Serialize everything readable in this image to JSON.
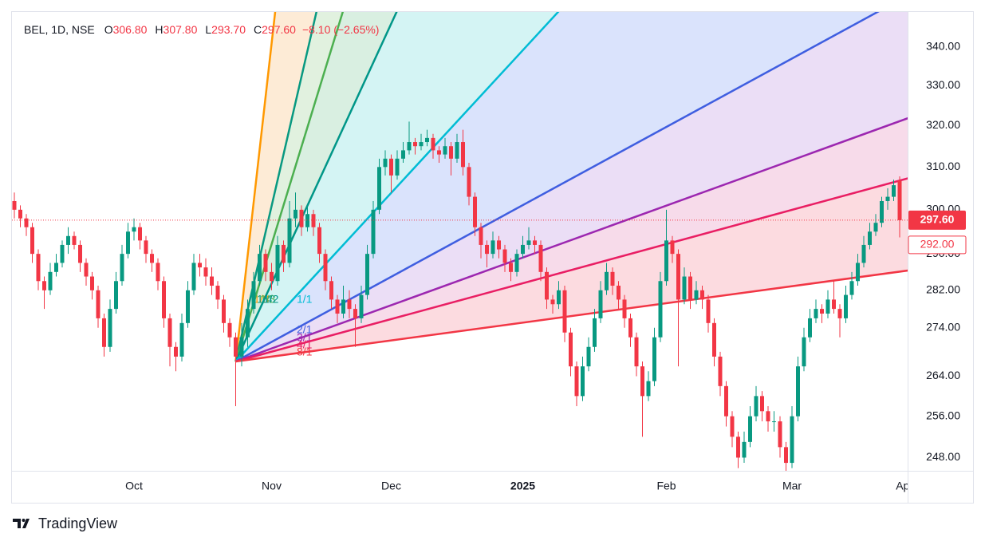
{
  "chart_data": {
    "type": "candlestick",
    "header": {
      "symbol": "BEL, 1D, NSE",
      "fields": [
        {
          "key": "O",
          "value": "306.80"
        },
        {
          "key": "H",
          "value": "307.80"
        },
        {
          "key": "L",
          "value": "293.70"
        },
        {
          "key": "C",
          "value": "297.60"
        }
      ],
      "change": "−8.10 (−2.65%)"
    },
    "up_color": "#089981",
    "down_color": "#f23645",
    "log_scale": true,
    "grid": false,
    "ylim": [
      245.5,
      349.2
    ],
    "yticks": [
      {
        "value": 340,
        "label": "340.00"
      },
      {
        "value": 330,
        "label": "330.00"
      },
      {
        "value": 320,
        "label": "320.00"
      },
      {
        "value": 310,
        "label": "310.00"
      },
      {
        "value": 300,
        "label": "300.00"
      },
      {
        "value": 290,
        "label": "290.00"
      },
      {
        "value": 282,
        "label": "282.00"
      },
      {
        "value": 274,
        "label": "274.00"
      },
      {
        "value": 264,
        "label": "264.00"
      },
      {
        "value": 256,
        "label": "256.00"
      },
      {
        "value": 248,
        "label": "248.00"
      }
    ],
    "xticks": [
      {
        "value": 20,
        "label": "Oct"
      },
      {
        "value": 43,
        "label": "Nov"
      },
      {
        "value": 63,
        "label": "Dec"
      },
      {
        "value": 85,
        "label": "2025"
      },
      {
        "value": 109,
        "label": "Feb"
      },
      {
        "value": 130,
        "label": "Mar"
      },
      {
        "value": 148.5,
        "label": "Ap"
      }
    ],
    "last_price": {
      "value": 297.6,
      "label": "297.60",
      "color": "#f23645"
    },
    "marker_price": {
      "value": 292,
      "label": "292.00",
      "color": "#f23645"
    },
    "ohlc": [
      [
        302,
        304,
        298,
        300
      ],
      [
        300,
        301,
        296,
        298
      ],
      [
        298,
        299,
        294,
        296
      ],
      [
        296,
        297,
        288,
        290
      ],
      [
        290,
        291,
        282,
        284
      ],
      [
        284,
        285,
        278,
        282
      ],
      [
        282,
        288,
        281,
        286
      ],
      [
        286,
        290,
        285,
        288
      ],
      [
        288,
        293,
        287,
        292
      ],
      [
        292,
        296,
        290,
        294
      ],
      [
        294,
        295,
        291,
        292
      ],
      [
        292,
        293,
        286,
        288
      ],
      [
        288,
        289,
        283,
        285
      ],
      [
        285,
        286,
        280,
        282
      ],
      [
        282,
        283,
        274,
        276
      ],
      [
        276,
        277,
        268,
        270
      ],
      [
        270,
        280,
        269,
        278
      ],
      [
        278,
        286,
        277,
        284
      ],
      [
        284,
        292,
        283,
        290
      ],
      [
        290,
        297,
        289,
        295
      ],
      [
        295,
        298,
        293,
        296
      ],
      [
        296,
        297,
        291,
        293
      ],
      [
        293,
        294,
        288,
        290
      ],
      [
        290,
        291,
        286,
        288
      ],
      [
        288,
        289,
        282,
        284
      ],
      [
        284,
        285,
        274,
        276
      ],
      [
        276,
        277,
        266,
        270
      ],
      [
        270,
        271,
        265,
        268
      ],
      [
        268,
        277,
        267,
        275
      ],
      [
        275,
        284,
        274,
        282
      ],
      [
        282,
        290,
        281,
        288
      ],
      [
        288,
        290,
        285,
        287
      ],
      [
        287,
        289,
        283,
        285
      ],
      [
        285,
        287,
        281,
        283
      ],
      [
        283,
        284,
        278,
        280
      ],
      [
        280,
        281,
        273,
        275
      ],
      [
        275,
        276,
        270,
        272
      ],
      [
        272,
        273,
        258,
        268
      ],
      [
        268,
        275,
        266,
        272
      ],
      [
        272,
        280,
        270,
        278
      ],
      [
        278,
        286,
        277,
        284
      ],
      [
        284,
        292,
        283,
        290
      ],
      [
        290,
        291,
        284,
        286
      ],
      [
        286,
        288,
        282,
        284
      ],
      [
        284,
        294,
        283,
        292
      ],
      [
        292,
        293,
        286,
        288
      ],
      [
        288,
        302,
        287,
        298
      ],
      [
        298,
        304,
        296,
        300
      ],
      [
        300,
        301,
        294,
        296
      ],
      [
        296,
        301,
        295,
        299
      ],
      [
        299,
        300,
        294,
        296
      ],
      [
        296,
        297,
        288,
        290
      ],
      [
        290,
        291,
        282,
        284
      ],
      [
        284,
        285,
        278,
        280
      ],
      [
        280,
        281,
        275,
        277
      ],
      [
        277,
        283,
        276,
        280
      ],
      [
        280,
        282,
        276,
        278
      ],
      [
        278,
        279,
        270,
        276
      ],
      [
        276,
        283,
        275,
        281
      ],
      [
        281,
        292,
        280,
        290
      ],
      [
        290,
        302,
        289,
        300
      ],
      [
        300,
        312,
        299,
        310
      ],
      [
        310,
        314,
        308,
        312
      ],
      [
        312,
        313,
        304,
        308
      ],
      [
        308,
        314,
        307,
        312
      ],
      [
        312,
        316,
        311,
        314
      ],
      [
        314,
        321,
        313,
        316
      ],
      [
        316,
        317,
        313,
        315
      ],
      [
        315,
        318,
        314,
        316
      ],
      [
        316,
        319,
        315,
        317
      ],
      [
        317,
        318,
        312,
        314
      ],
      [
        314,
        315,
        311,
        313
      ],
      [
        313,
        317,
        312,
        315
      ],
      [
        315,
        316,
        308,
        312
      ],
      [
        312,
        318,
        311,
        316
      ],
      [
        316,
        319,
        308,
        310
      ],
      [
        310,
        311,
        301,
        303
      ],
      [
        303,
        304,
        294,
        296
      ],
      [
        296,
        297,
        289,
        292
      ],
      [
        292,
        293,
        287,
        290
      ],
      [
        290,
        295,
        289,
        293
      ],
      [
        293,
        294,
        289,
        291
      ],
      [
        291,
        292,
        286,
        288
      ],
      [
        288,
        289,
        284,
        286
      ],
      [
        286,
        291,
        285,
        290
      ],
      [
        290,
        294,
        289,
        292
      ],
      [
        292,
        296,
        291,
        293
      ],
      [
        293,
        294,
        290,
        292
      ],
      [
        292,
        293,
        284,
        286
      ],
      [
        286,
        287,
        278,
        280
      ],
      [
        280,
        281,
        277,
        279
      ],
      [
        279,
        284,
        278,
        282
      ],
      [
        282,
        283,
        271,
        273
      ],
      [
        273,
        274,
        264,
        266
      ],
      [
        266,
        267,
        258,
        260
      ],
      [
        260,
        268,
        259,
        266
      ],
      [
        266,
        272,
        265,
        270
      ],
      [
        270,
        278,
        269,
        276
      ],
      [
        276,
        284,
        275,
        282
      ],
      [
        282,
        288,
        281,
        286
      ],
      [
        286,
        287,
        281,
        283
      ],
      [
        283,
        284,
        278,
        280
      ],
      [
        280,
        281,
        274,
        276
      ],
      [
        276,
        277,
        270,
        272
      ],
      [
        272,
        273,
        264,
        266
      ],
      [
        266,
        267,
        252,
        260
      ],
      [
        260,
        265,
        259,
        263
      ],
      [
        263,
        274,
        262,
        272
      ],
      [
        272,
        286,
        271,
        284
      ],
      [
        284,
        300,
        283,
        293
      ],
      [
        293,
        294,
        288,
        290
      ],
      [
        290,
        291,
        266,
        280
      ],
      [
        280,
        287,
        279,
        285
      ],
      [
        285,
        286,
        278,
        280
      ],
      [
        280,
        284,
        279,
        282
      ],
      [
        282,
        283,
        278,
        280
      ],
      [
        280,
        281,
        273,
        275
      ],
      [
        275,
        276,
        266,
        268
      ],
      [
        268,
        269,
        260,
        262
      ],
      [
        262,
        263,
        254,
        256
      ],
      [
        256,
        257,
        250,
        252
      ],
      [
        252,
        253,
        246,
        248
      ],
      [
        248,
        253,
        247,
        251
      ],
      [
        251,
        258,
        250,
        256
      ],
      [
        256,
        262,
        255,
        260
      ],
      [
        260,
        261,
        255,
        257
      ],
      [
        257,
        258,
        253,
        255
      ],
      [
        255,
        257,
        253,
        255
      ],
      [
        255,
        256,
        248,
        250
      ],
      [
        250,
        251,
        245.5,
        247
      ],
      [
        247,
        258,
        246,
        256
      ],
      [
        256,
        268,
        255,
        266
      ],
      [
        266,
        274,
        265,
        272
      ],
      [
        272,
        278,
        271,
        276
      ],
      [
        276,
        280,
        275,
        278
      ],
      [
        278,
        279,
        275,
        277
      ],
      [
        277,
        282,
        276,
        280
      ],
      [
        280,
        284,
        277,
        278
      ],
      [
        278,
        279,
        272,
        276
      ],
      [
        276,
        283,
        275,
        281
      ],
      [
        281,
        286,
        280,
        284
      ],
      [
        284,
        290,
        283,
        288
      ],
      [
        288,
        294,
        287,
        292
      ],
      [
        292,
        297,
        291,
        295
      ],
      [
        295,
        299,
        294,
        297
      ],
      [
        297,
        303,
        296,
        302
      ],
      [
        302,
        305,
        300,
        303
      ],
      [
        303,
        307,
        302,
        305.7
      ],
      [
        306.8,
        307.8,
        293.7,
        297.6
      ]
    ],
    "fan": {
      "origin": [
        37,
        267
      ],
      "levels": [
        {
          "label": "1/8",
          "color": "#ff9800",
          "fill": "#fde8cf",
          "end": [
            43.6,
            349.2
          ]
        },
        {
          "label": "1/4",
          "color": "#089981",
          "fill": "#dcefd9",
          "end": [
            50.5,
            349.2
          ]
        },
        {
          "label": "1/3",
          "color": "#4caf50",
          "fill": "#d2ecdc",
          "end": [
            54.9,
            349.2
          ]
        },
        {
          "label": "1/2",
          "color": "#009688",
          "fill": "#cdf2f2",
          "end": [
            63.9,
            349.2
          ]
        },
        {
          "label": "1/1",
          "color": "#00bcd4",
          "fill": "#d4defc",
          "end": [
            90.9,
            349.2
          ]
        },
        {
          "label": "2/1",
          "color": "#3f5ee0",
          "fill": "#e8d8f5",
          "end": [
            144.3,
            349.2
          ]
        },
        {
          "label": "3/1",
          "color": "#9c27b0",
          "fill": "#f6d5e6",
          "end": [
            149.3,
            321.8
          ]
        },
        {
          "label": "4/1",
          "color": "#e91e63",
          "fill": "#fcd5db",
          "end": [
            149.3,
            307.3
          ]
        },
        {
          "label": "8/1",
          "color": "#f23645",
          "end": [
            149.3,
            286.3
          ]
        }
      ]
    }
  },
  "footer": {
    "brand": "TradingView"
  }
}
